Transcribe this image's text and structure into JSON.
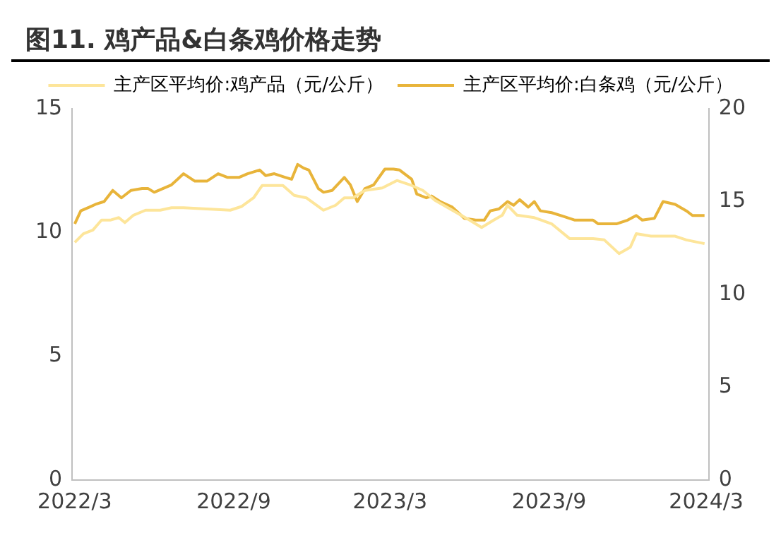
{
  "chart_data": {
    "type": "line",
    "title": "图11. 鸡产品&白条鸡价格走势",
    "xlim": [
      "2022-02-26",
      "2024-03-04"
    ],
    "xticks": [
      {
        "value": "2022-03-01",
        "label": "2022/3"
      },
      {
        "value": "2022-09-01",
        "label": "2022/9"
      },
      {
        "value": "2023-03-01",
        "label": "2023/3"
      },
      {
        "value": "2023-09-01",
        "label": "2023/9"
      },
      {
        "value": "2024-03-01",
        "label": "2024/3"
      }
    ],
    "ylim": [
      0,
      15
    ],
    "yticks": [
      0,
      5,
      10,
      15
    ],
    "y2lim": [
      0,
      20
    ],
    "y2ticks": [
      0,
      5,
      10,
      15,
      20
    ],
    "grid": false,
    "legend": "top",
    "marker": "none",
    "line_style": "solid",
    "series": [
      {
        "name": "主产区平均价:鸡产品（元/公斤）",
        "color": "#fde59a",
        "x": [
          "2022-03-01",
          "2022-03-11",
          "2022-03-22",
          "2022-04-01",
          "2022-04-11",
          "2022-04-21",
          "2022-04-28",
          "2022-05-08",
          "2022-05-22",
          "2022-06-08",
          "2022-06-21",
          "2022-07-05",
          "2022-08-01",
          "2022-08-28",
          "2022-09-10",
          "2022-09-24",
          "2022-10-04",
          "2022-10-28",
          "2022-11-10",
          "2022-11-24",
          "2022-12-14",
          "2022-12-28",
          "2023-01-07",
          "2023-01-17",
          "2023-01-31",
          "2023-02-20",
          "2023-03-09",
          "2023-03-26",
          "2023-04-08",
          "2023-04-22",
          "2023-05-12",
          "2023-06-01",
          "2023-06-15",
          "2023-06-29",
          "2023-07-09",
          "2023-07-15",
          "2023-07-26",
          "2023-08-15",
          "2023-09-04",
          "2023-09-25",
          "2023-10-22",
          "2023-11-04",
          "2023-11-21",
          "2023-12-04",
          "2023-12-11",
          "2023-12-28",
          "2024-01-25",
          "2024-02-07",
          "2024-02-28"
        ],
        "values": [
          9.6,
          9.95,
          10.1,
          10.5,
          10.5,
          10.6,
          10.4,
          10.7,
          10.9,
          10.9,
          11.0,
          11.0,
          10.95,
          10.9,
          11.05,
          11.4,
          11.9,
          11.9,
          11.5,
          11.4,
          10.9,
          11.1,
          11.4,
          11.4,
          11.7,
          11.8,
          12.1,
          11.9,
          11.7,
          11.3,
          10.9,
          10.5,
          10.2,
          10.5,
          10.7,
          11.1,
          10.7,
          10.6,
          10.35,
          9.75,
          9.75,
          9.7,
          9.15,
          9.4,
          9.95,
          9.85,
          9.85,
          9.7,
          9.55
        ]
      },
      {
        "name": "主产区平均价:白条鸡（元/公斤）",
        "color": "#e8b43a",
        "axis": "y2",
        "x": [
          "2022-03-01",
          "2022-03-08",
          "2022-03-18",
          "2022-03-25",
          "2022-04-04",
          "2022-04-14",
          "2022-04-24",
          "2022-05-05",
          "2022-05-18",
          "2022-05-25",
          "2022-06-01",
          "2022-06-11",
          "2022-06-21",
          "2022-07-05",
          "2022-07-18",
          "2022-08-01",
          "2022-08-14",
          "2022-08-25",
          "2022-09-07",
          "2022-09-17",
          "2022-10-01",
          "2022-10-08",
          "2022-10-18",
          "2022-10-31",
          "2022-11-07",
          "2022-11-14",
          "2022-11-21",
          "2022-11-27",
          "2022-12-08",
          "2022-12-14",
          "2022-12-24",
          "2023-01-07",
          "2023-01-14",
          "2023-01-22",
          "2023-01-31",
          "2023-02-10",
          "2023-02-23",
          "2023-03-05",
          "2023-03-12",
          "2023-03-26",
          "2023-04-01",
          "2023-04-12",
          "2023-04-18",
          "2023-04-28",
          "2023-05-12",
          "2023-05-26",
          "2023-06-08",
          "2023-06-18",
          "2023-06-25",
          "2023-07-05",
          "2023-07-15",
          "2023-07-22",
          "2023-07-29",
          "2023-08-08",
          "2023-08-15",
          "2023-08-22",
          "2023-09-04",
          "2023-09-18",
          "2023-10-01",
          "2023-10-22",
          "2023-10-28",
          "2023-11-18",
          "2023-12-01",
          "2023-12-11",
          "2023-12-18",
          "2024-01-01",
          "2024-01-11",
          "2024-01-25",
          "2024-02-07",
          "2024-02-14",
          "2024-02-28"
        ],
        "values": [
          13.8,
          14.5,
          14.7,
          14.85,
          15.0,
          15.6,
          15.2,
          15.6,
          15.7,
          15.7,
          15.5,
          15.7,
          15.9,
          16.5,
          16.1,
          16.1,
          16.5,
          16.3,
          16.3,
          16.5,
          16.7,
          16.4,
          16.5,
          16.3,
          16.2,
          17.0,
          16.8,
          16.7,
          15.7,
          15.5,
          15.6,
          16.3,
          15.9,
          15.0,
          15.7,
          15.9,
          16.75,
          16.75,
          16.7,
          16.2,
          15.4,
          15.2,
          15.3,
          15.0,
          14.7,
          14.1,
          14.0,
          14.0,
          14.5,
          14.6,
          15.0,
          14.8,
          15.1,
          14.7,
          15.0,
          14.5,
          14.4,
          14.2,
          14.0,
          14.0,
          13.8,
          13.8,
          14.0,
          14.25,
          14.0,
          14.1,
          15.0,
          14.85,
          14.5,
          14.25,
          14.25
        ]
      }
    ]
  }
}
